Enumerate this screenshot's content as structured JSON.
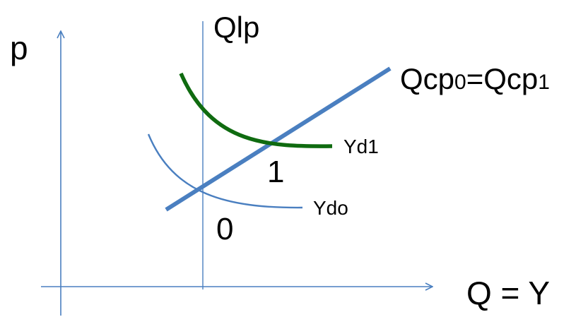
{
  "labels": {
    "y_axis": "p",
    "x_axis": "Q = Y",
    "vertical_line": "Qlp",
    "supply_curve_main": "Qcp",
    "supply_curve_sub0": "0",
    "supply_curve_mid": "=Qcp",
    "supply_curve_sub1": "1",
    "demand_curve_1": "Yd1",
    "demand_curve_0": "Ydo",
    "point_0": "0",
    "point_1": "1"
  },
  "colors": {
    "axis": "#4a7fc0",
    "supply_line": "#4a7fc0",
    "demand_0": "#4a7fc0",
    "demand_1": "#0f6b10",
    "text": "#000000"
  }
}
